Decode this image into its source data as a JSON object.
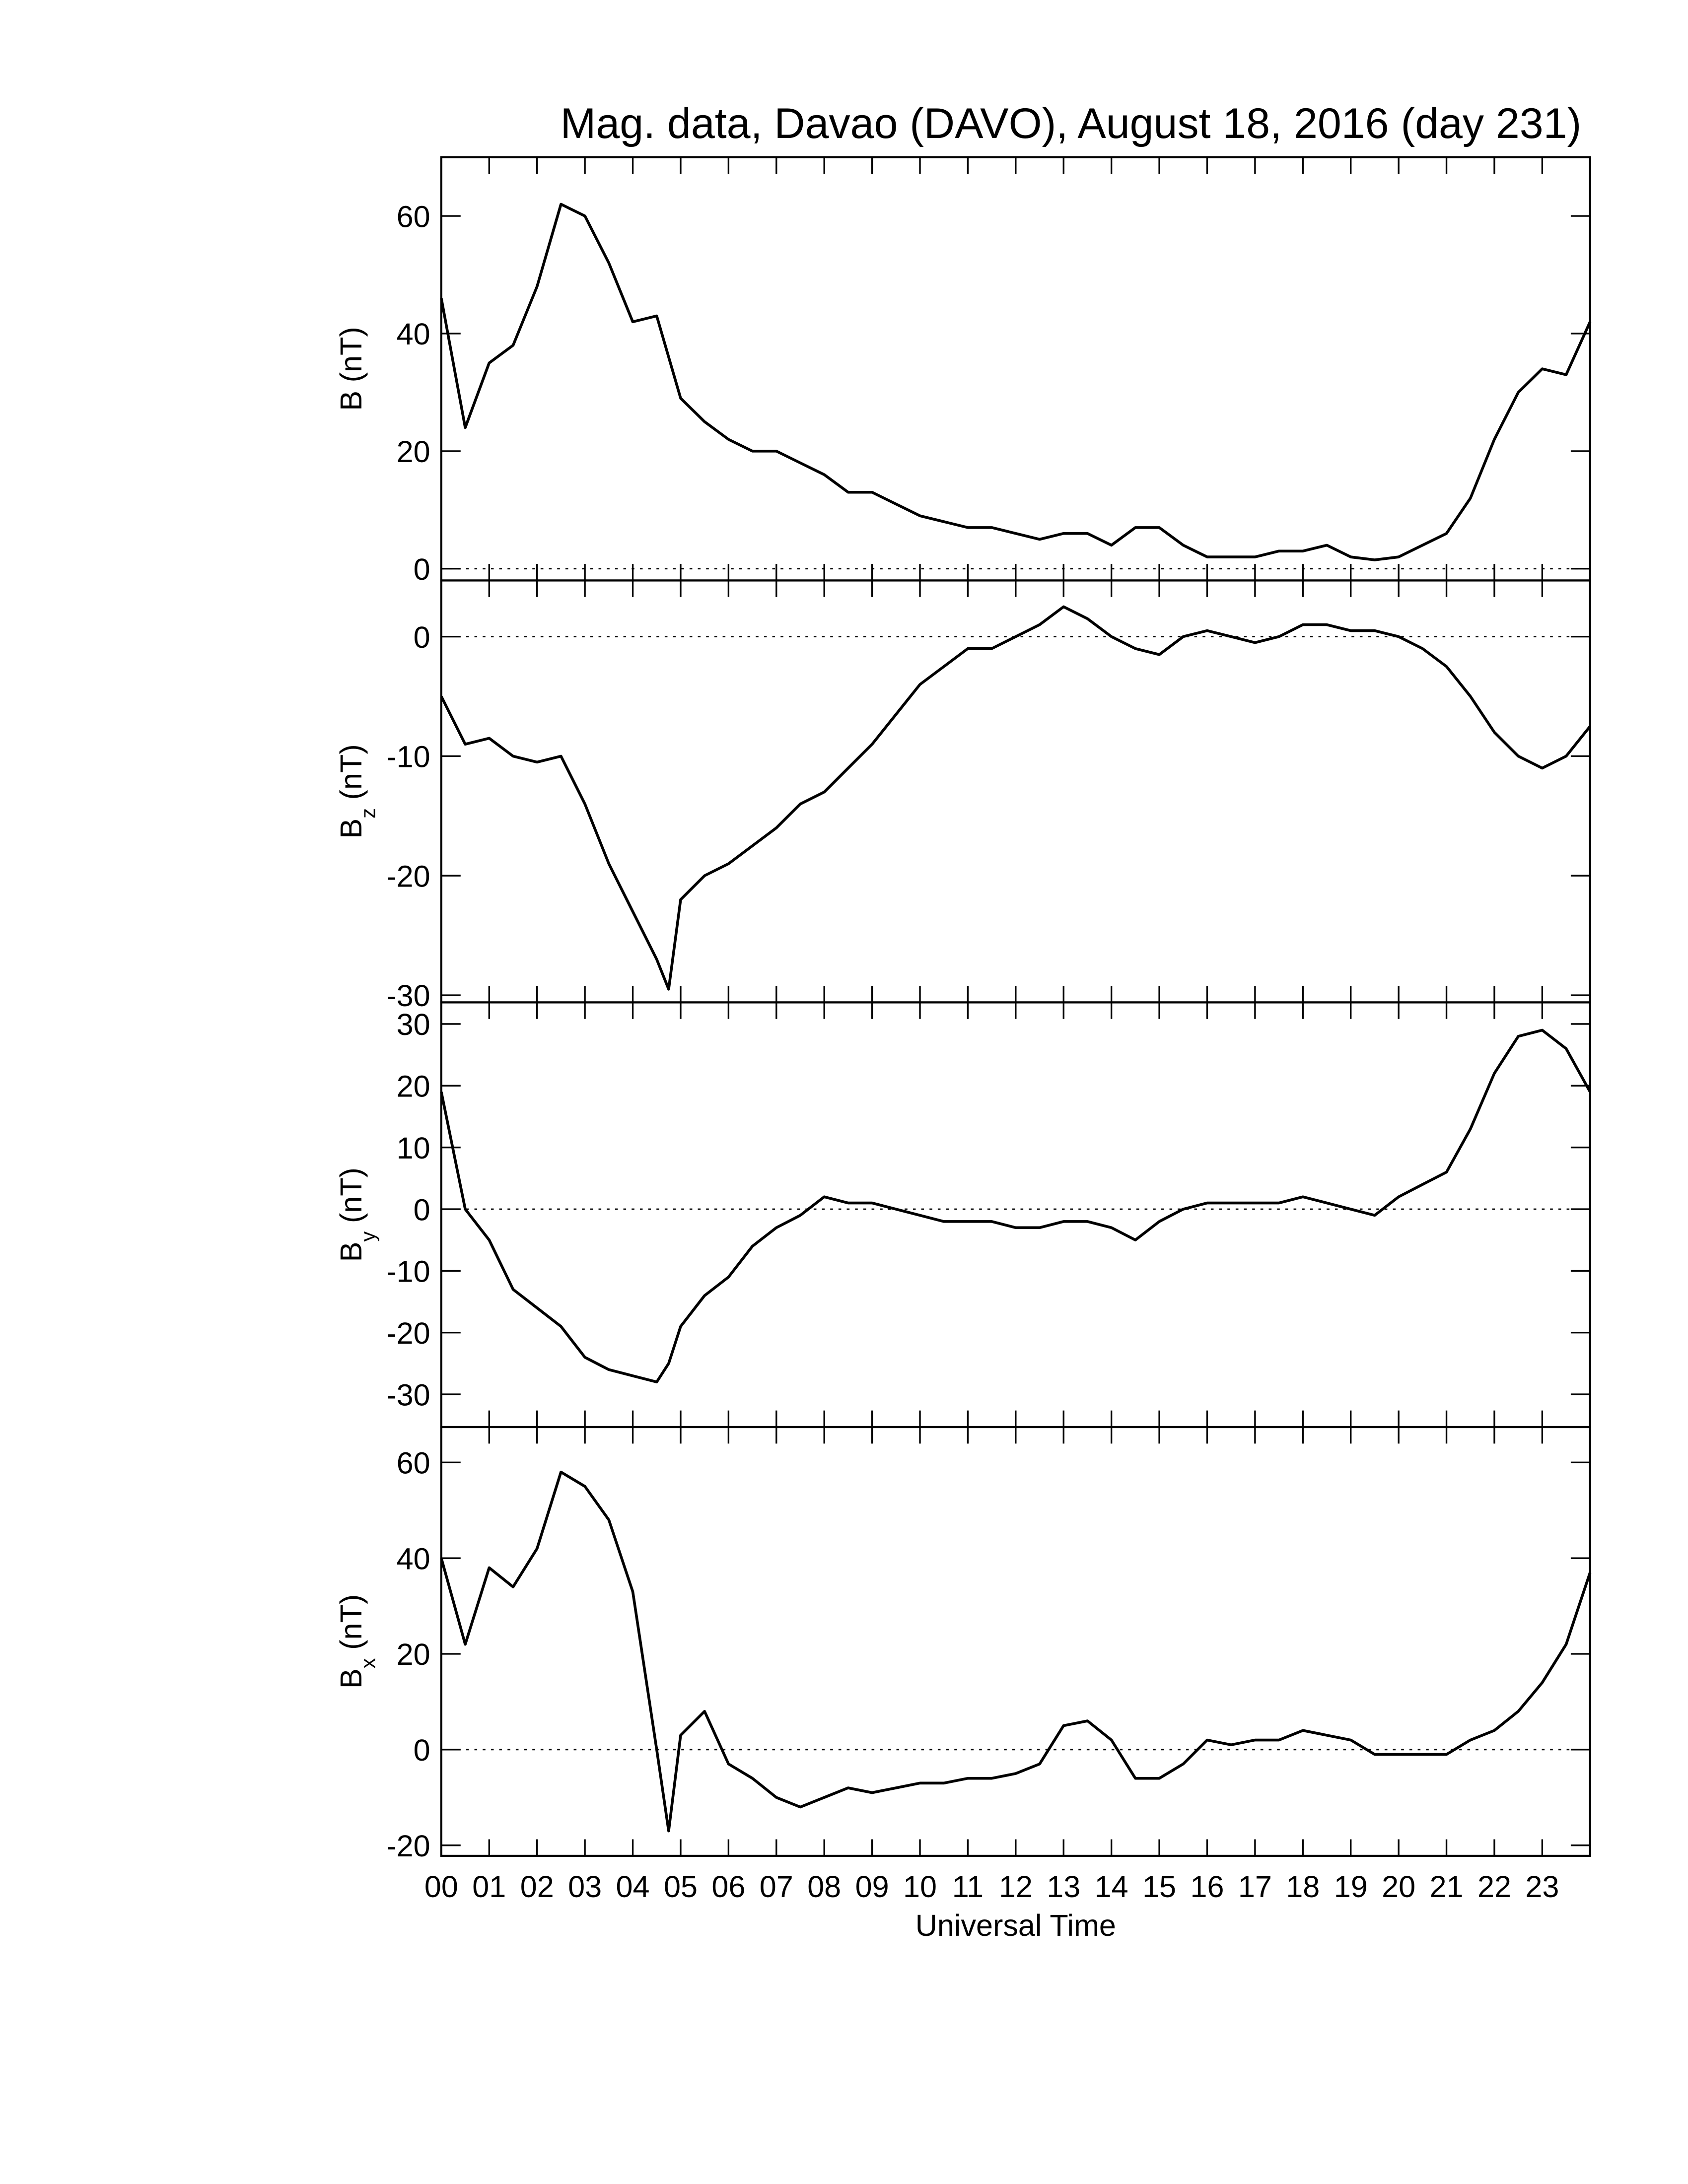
{
  "chart_data": [
    {
      "type": "line",
      "title": "Mag. data, Davao (DAVO), August 18, 2016 (day 231)",
      "ylabel": "B",
      "ylabel_unit": "(nT)",
      "x": [
        0,
        0.5,
        1,
        1.5,
        2,
        2.5,
        3,
        3.5,
        4,
        4.5,
        4.75,
        5,
        5.5,
        6,
        6.5,
        7,
        7.5,
        8,
        8.5,
        9,
        9.5,
        10,
        10.5,
        11,
        11.5,
        12,
        12.5,
        13,
        13.5,
        14,
        14.5,
        15,
        15.5,
        16,
        16.5,
        17,
        17.5,
        18,
        18.5,
        19,
        19.5,
        20,
        20.5,
        21,
        21.5,
        22,
        22.5,
        23,
        23.5,
        24
      ],
      "series": [
        {
          "color": "#000000",
          "values": [
            46,
            24,
            35,
            38,
            48,
            62,
            60,
            52,
            42,
            43,
            36,
            29,
            25,
            22,
            20,
            20,
            18,
            16,
            13,
            13,
            11,
            9,
            8,
            7,
            7,
            6,
            5,
            6,
            6,
            4,
            7,
            7,
            4,
            2,
            2,
            2,
            3,
            3,
            4,
            2,
            1.5,
            2,
            4,
            6,
            12,
            22,
            30,
            34,
            33,
            42
          ]
        }
      ],
      "xlim": [
        0,
        24
      ],
      "ylim": [
        -2,
        70
      ],
      "yticks": [
        0,
        20,
        40,
        60
      ],
      "zero_line": true
    },
    {
      "type": "line",
      "ylabel": "B",
      "ylabel_sub": "z",
      "ylabel_unit": "(nT)",
      "x": [
        0,
        0.5,
        1,
        1.5,
        2,
        2.5,
        3,
        3.5,
        4,
        4.5,
        4.75,
        5,
        5.5,
        6,
        6.5,
        7,
        7.5,
        8,
        8.5,
        9,
        9.5,
        10,
        10.5,
        11,
        11.5,
        12,
        12.5,
        13,
        13.5,
        14,
        14.5,
        15,
        15.5,
        16,
        16.5,
        17,
        17.5,
        18,
        18.5,
        19,
        19.5,
        20,
        20.5,
        21,
        21.5,
        22,
        22.5,
        23,
        23.5,
        24
      ],
      "series": [
        {
          "color": "#000000",
          "values": [
            -5,
            -9,
            -8.5,
            -10,
            -10.5,
            -10,
            -14,
            -19,
            -23,
            -27,
            -29.5,
            -22,
            -20,
            -19,
            -17.5,
            -16,
            -14,
            -13,
            -11,
            -9,
            -6.5,
            -4,
            -2.5,
            -1,
            -1,
            0,
            1,
            2.5,
            1.5,
            0,
            -1,
            -1.5,
            0,
            0.5,
            0,
            -0.5,
            0,
            1,
            1,
            0.5,
            0.5,
            0,
            -1,
            -2.5,
            -5,
            -8,
            -10,
            -11,
            -10,
            -7.5
          ]
        }
      ],
      "xlim": [
        0,
        24
      ],
      "ylim": [
        -30.6,
        4.7
      ],
      "yticks": [
        -30,
        -20,
        -10,
        0
      ],
      "zero_line": true
    },
    {
      "type": "line",
      "ylabel": "B",
      "ylabel_sub": "y",
      "ylabel_unit": "(nT)",
      "x": [
        0,
        0.5,
        1,
        1.5,
        2,
        2.5,
        3,
        3.5,
        4,
        4.5,
        4.75,
        5,
        5.5,
        6,
        6.5,
        7,
        7.5,
        8,
        8.5,
        9,
        9.5,
        10,
        10.5,
        11,
        11.5,
        12,
        12.5,
        13,
        13.5,
        14,
        14.5,
        15,
        15.5,
        16,
        16.5,
        17,
        17.5,
        18,
        18.5,
        19,
        19.5,
        20,
        20.5,
        21,
        21.5,
        22,
        22.5,
        23,
        23.5,
        24
      ],
      "series": [
        {
          "color": "#000000",
          "values": [
            19,
            0,
            -5,
            -13,
            -16,
            -19,
            -24,
            -26,
            -27,
            -28,
            -25,
            -19,
            -14,
            -11,
            -6,
            -3,
            -1,
            2,
            1,
            1,
            0,
            -1,
            -2,
            -2,
            -2,
            -3,
            -3,
            -2,
            -2,
            -3,
            -5,
            -2,
            0,
            1,
            1,
            1,
            1,
            2,
            1,
            0,
            -1,
            2,
            4,
            6,
            13,
            22,
            28,
            29,
            26,
            19
          ]
        }
      ],
      "xlim": [
        0,
        24
      ],
      "ylim": [
        -35.3,
        33.5
      ],
      "yticks": [
        -30,
        -20,
        -10,
        0,
        10,
        20,
        30
      ],
      "zero_line": true
    },
    {
      "type": "line",
      "ylabel": "B",
      "ylabel_sub": "x",
      "ylabel_unit": "(nT)",
      "xlabel": "Universal Time",
      "x": [
        0,
        0.5,
        1,
        1.5,
        2,
        2.5,
        3,
        3.5,
        4,
        4.5,
        4.75,
        5,
        5.5,
        6,
        6.5,
        7,
        7.5,
        8,
        8.5,
        9,
        9.5,
        10,
        10.5,
        11,
        11.5,
        12,
        12.5,
        13,
        13.5,
        14,
        14.5,
        15,
        15.5,
        16,
        16.5,
        17,
        17.5,
        18,
        18.5,
        19,
        19.5,
        20,
        20.5,
        21,
        21.5,
        22,
        22.5,
        23,
        23.5,
        24
      ],
      "series": [
        {
          "color": "#000000",
          "values": [
            40,
            22,
            38,
            34,
            42,
            58,
            55,
            48,
            33,
            0,
            -17,
            3,
            8,
            -3,
            -6,
            -10,
            -12,
            -10,
            -8,
            -9,
            -8,
            -7,
            -7,
            -6,
            -6,
            -5,
            -3,
            5,
            6,
            2,
            -6,
            -6,
            -3,
            2,
            1,
            2,
            2,
            4,
            3,
            2,
            -1,
            -1,
            -1,
            -1,
            2,
            4,
            8,
            14,
            22,
            37
          ]
        }
      ],
      "xlim": [
        0,
        24
      ],
      "ylim": [
        -22.2,
        67.4
      ],
      "xticks": [
        {
          "value": 0,
          "label": "00"
        },
        {
          "value": 1,
          "label": "01"
        },
        {
          "value": 2,
          "label": "02"
        },
        {
          "value": 3,
          "label": "03"
        },
        {
          "value": 4,
          "label": "04"
        },
        {
          "value": 5,
          "label": "05"
        },
        {
          "value": 6,
          "label": "06"
        },
        {
          "value": 7,
          "label": "07"
        },
        {
          "value": 8,
          "label": "08"
        },
        {
          "value": 9,
          "label": "09"
        },
        {
          "value": 10,
          "label": "10"
        },
        {
          "value": 11,
          "label": "11"
        },
        {
          "value": 12,
          "label": "12"
        },
        {
          "value": 13,
          "label": "13"
        },
        {
          "value": 14,
          "label": "14"
        },
        {
          "value": 15,
          "label": "15"
        },
        {
          "value": 16,
          "label": "16"
        },
        {
          "value": 17,
          "label": "17"
        },
        {
          "value": 18,
          "label": "18"
        },
        {
          "value": 19,
          "label": "19"
        },
        {
          "value": 20,
          "label": "20"
        },
        {
          "value": 21,
          "label": "21"
        },
        {
          "value": 22,
          "label": "22"
        },
        {
          "value": 23,
          "label": "23"
        }
      ],
      "yticks": [
        -20,
        0,
        20,
        40,
        60
      ],
      "zero_line": true
    }
  ]
}
